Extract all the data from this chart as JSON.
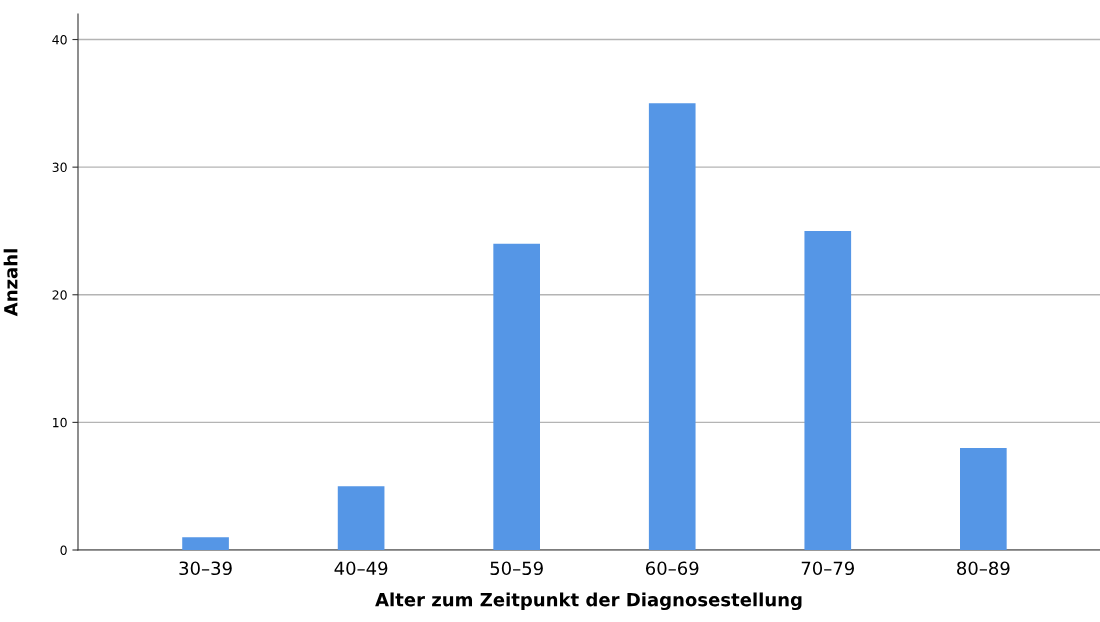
{
  "chart_data": {
    "type": "bar",
    "xlabel": "Alter zum Zeitpunkt der Diagnosestellung",
    "ylabel": "Anzahl",
    "categories": [
      "30–39",
      "40–49",
      "50–59",
      "60–69",
      "70–79",
      "80–89"
    ],
    "values": [
      1,
      5,
      24,
      35,
      25,
      8
    ],
    "color": "#5596e6",
    "ylim": [
      0,
      42
    ],
    "yticks": [
      0,
      10,
      20,
      30,
      40
    ],
    "grid": "y"
  }
}
